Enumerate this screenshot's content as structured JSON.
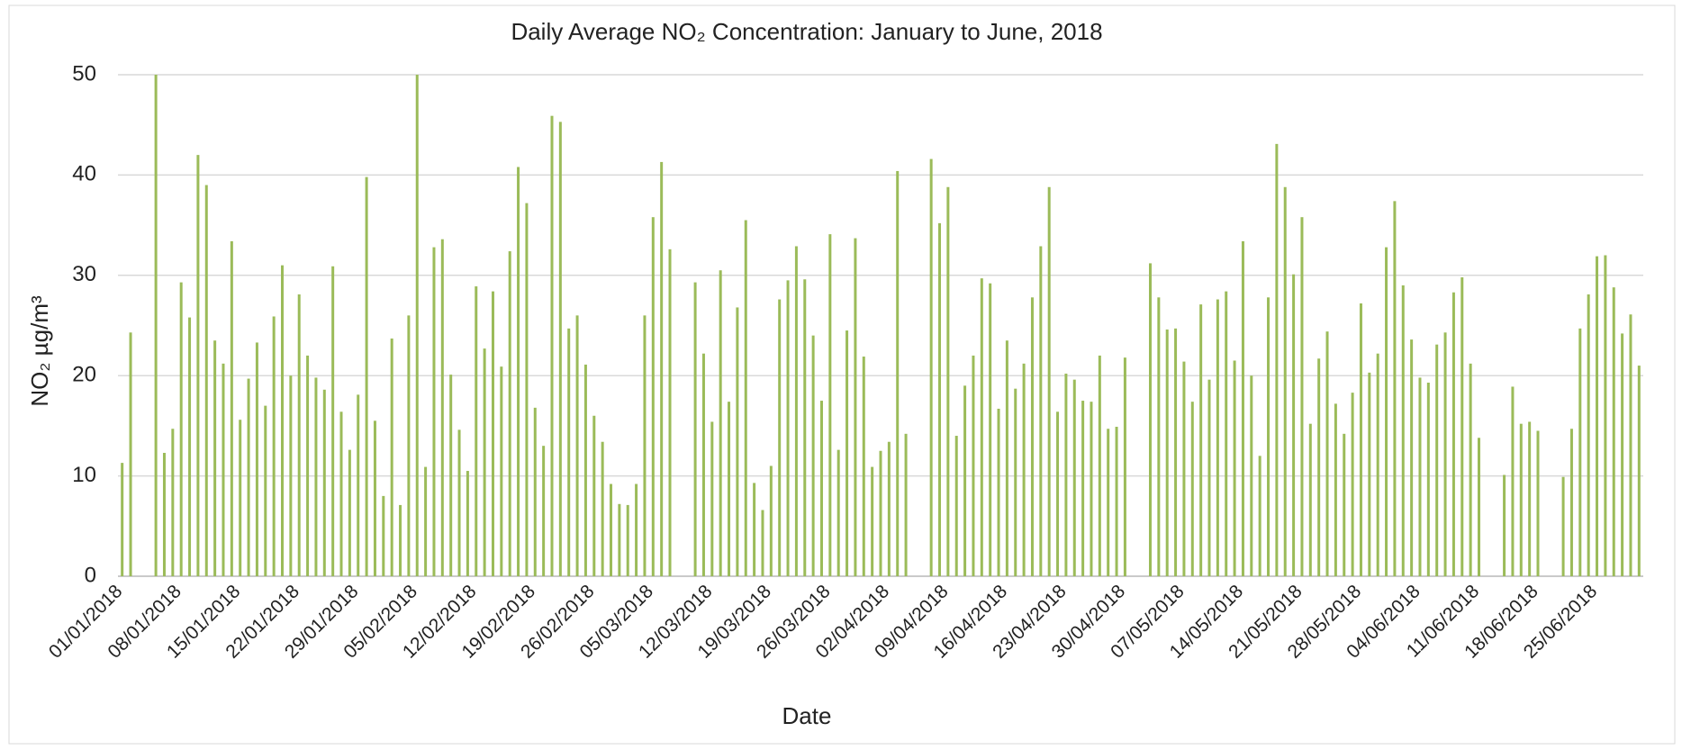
{
  "chart_data": {
    "type": "bar",
    "title": "Daily Average NO₂ Concentration: January to June, 2018",
    "x_label": "Date",
    "y_label": "NO₂ µg/m³",
    "color": "#9bbb59",
    "grid": true,
    "ylim": [
      0,
      50
    ],
    "yticks": [
      0,
      10,
      20,
      30,
      40,
      50
    ],
    "categories": [
      "01/01/2018",
      null,
      null,
      null,
      null,
      null,
      null,
      "08/01/2018",
      null,
      null,
      null,
      null,
      null,
      null,
      "15/01/2018",
      null,
      null,
      null,
      null,
      null,
      null,
      "22/01/2018",
      null,
      null,
      null,
      null,
      null,
      null,
      "29/01/2018",
      null,
      null,
      null,
      null,
      null,
      null,
      "05/02/2018",
      null,
      null,
      null,
      null,
      null,
      null,
      "12/02/2018",
      null,
      null,
      null,
      null,
      null,
      null,
      "19/02/2018",
      null,
      null,
      null,
      null,
      null,
      null,
      "26/02/2018",
      null,
      null,
      null,
      null,
      null,
      null,
      "05/03/2018",
      null,
      null,
      null,
      null,
      null,
      null,
      "12/03/2018",
      null,
      null,
      null,
      null,
      null,
      null,
      "19/03/2018",
      null,
      null,
      null,
      null,
      null,
      null,
      "26/03/2018",
      null,
      null,
      null,
      null,
      null,
      null,
      "02/04/2018",
      null,
      null,
      null,
      null,
      null,
      null,
      "09/04/2018",
      null,
      null,
      null,
      null,
      null,
      null,
      "16/04/2018",
      null,
      null,
      null,
      null,
      null,
      null,
      "23/04/2018",
      null,
      null,
      null,
      null,
      null,
      null,
      "30/04/2018",
      null,
      null,
      null,
      null,
      null,
      null,
      "07/05/2018",
      null,
      null,
      null,
      null,
      null,
      null,
      "14/05/2018",
      null,
      null,
      null,
      null,
      null,
      null,
      "21/05/2018",
      null,
      null,
      null,
      null,
      null,
      null,
      "28/05/2018",
      null,
      null,
      null,
      null,
      null,
      null,
      "04/06/2018",
      null,
      null,
      null,
      null,
      null,
      null,
      "11/06/2018",
      null,
      null,
      null,
      null,
      null,
      null,
      "18/06/2018",
      null,
      null,
      null,
      null,
      null,
      null,
      "25/06/2018",
      null,
      null,
      null,
      null,
      null
    ],
    "values": [
      11.3,
      24.3,
      null,
      null,
      50,
      12.3,
      14.7,
      29.3,
      25.8,
      42,
      39,
      23.5,
      21.2,
      33.4,
      15.6,
      19.7,
      23.3,
      17,
      25.9,
      31,
      20,
      28.1,
      22,
      19.8,
      18.6,
      30.9,
      16.4,
      12.6,
      18.1,
      39.8,
      15.5,
      8,
      23.7,
      7.1,
      26,
      50,
      10.9,
      32.8,
      33.6,
      20.1,
      14.6,
      10.5,
      28.9,
      22.7,
      28.4,
      20.9,
      32.4,
      40.8,
      37.2,
      16.8,
      13,
      45.9,
      45.3,
      24.7,
      26,
      21.1,
      16,
      13.4,
      9.2,
      7.2,
      7.1,
      9.2,
      26,
      35.8,
      41.3,
      32.6,
      null,
      null,
      29.3,
      22.2,
      15.4,
      30.5,
      17.4,
      26.8,
      35.5,
      9.3,
      6.6,
      11,
      27.6,
      29.5,
      32.9,
      29.6,
      24,
      17.5,
      34.1,
      12.6,
      24.5,
      33.7,
      21.9,
      10.9,
      12.5,
      13.4,
      40.4,
      14.2,
      null,
      null,
      41.6,
      35.2,
      38.8,
      14,
      19,
      22,
      29.7,
      29.2,
      16.7,
      23.5,
      18.7,
      21.2,
      27.8,
      32.9,
      38.8,
      16.4,
      20.2,
      19.6,
      17.5,
      17.4,
      22,
      14.7,
      14.9,
      21.8,
      null,
      null,
      31.2,
      27.8,
      24.6,
      24.7,
      21.4,
      17.4,
      27.1,
      19.6,
      27.6,
      28.4,
      21.5,
      33.4,
      20,
      12,
      27.8,
      43.1,
      38.8,
      30.1,
      35.8,
      15.2,
      21.7,
      24.4,
      17.2,
      14.2,
      18.3,
      27.2,
      20.3,
      22.2,
      32.8,
      37.4,
      29,
      23.6,
      19.8,
      19.3,
      23.1,
      24.3,
      28.3,
      29.8,
      21.2,
      13.8,
      null,
      null,
      10.1,
      18.9,
      15.2,
      15.4,
      14.5,
      null,
      null,
      9.9,
      14.7,
      24.7,
      28.1,
      31.9,
      32,
      28.8,
      24.2,
      26.1,
      21
    ]
  }
}
